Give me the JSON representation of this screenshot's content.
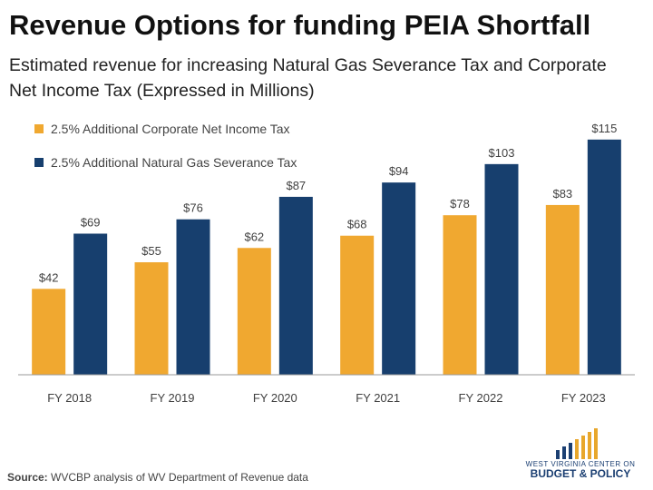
{
  "header": {
    "title": "Revenue Options for funding PEIA Shortfall",
    "subtitle": "Estimated revenue for increasing Natural Gas Severance Tax and Corporate Net Income Tax (Expressed in Millions)"
  },
  "footer": {
    "source_label": "Source:",
    "source_text": " WVCBP analysis of WV Department of Revenue data"
  },
  "logo": {
    "line1": "WEST VIRGINIA CENTER ON",
    "line2": "BUDGET & POLICY"
  },
  "colors": {
    "corporate": "#f0a830",
    "severance": "#173f6e",
    "axis": "#9a9a9a",
    "logo_blue": "#1b3f72",
    "logo_gold": "#e8a72c"
  },
  "chart_data": {
    "type": "bar",
    "categories": [
      "FY 2018",
      "FY 2019",
      "FY 2020",
      "FY 2021",
      "FY 2022",
      "FY 2023"
    ],
    "series": [
      {
        "name": "2.5% Additional Corporate Net Income Tax",
        "values": [
          42,
          55,
          62,
          68,
          78,
          83
        ],
        "labels": [
          "$42",
          "$55",
          "$62",
          "$68",
          "$78",
          "$83"
        ]
      },
      {
        "name": "2.5% Additional Natural Gas Severance Tax",
        "values": [
          69,
          76,
          87,
          94,
          103,
          115
        ],
        "labels": [
          "$69",
          "$76",
          "$87",
          "$94",
          "$103",
          "$115"
        ]
      }
    ],
    "ylim": [
      0,
      130
    ],
    "grid": false,
    "legend": "top-left"
  }
}
